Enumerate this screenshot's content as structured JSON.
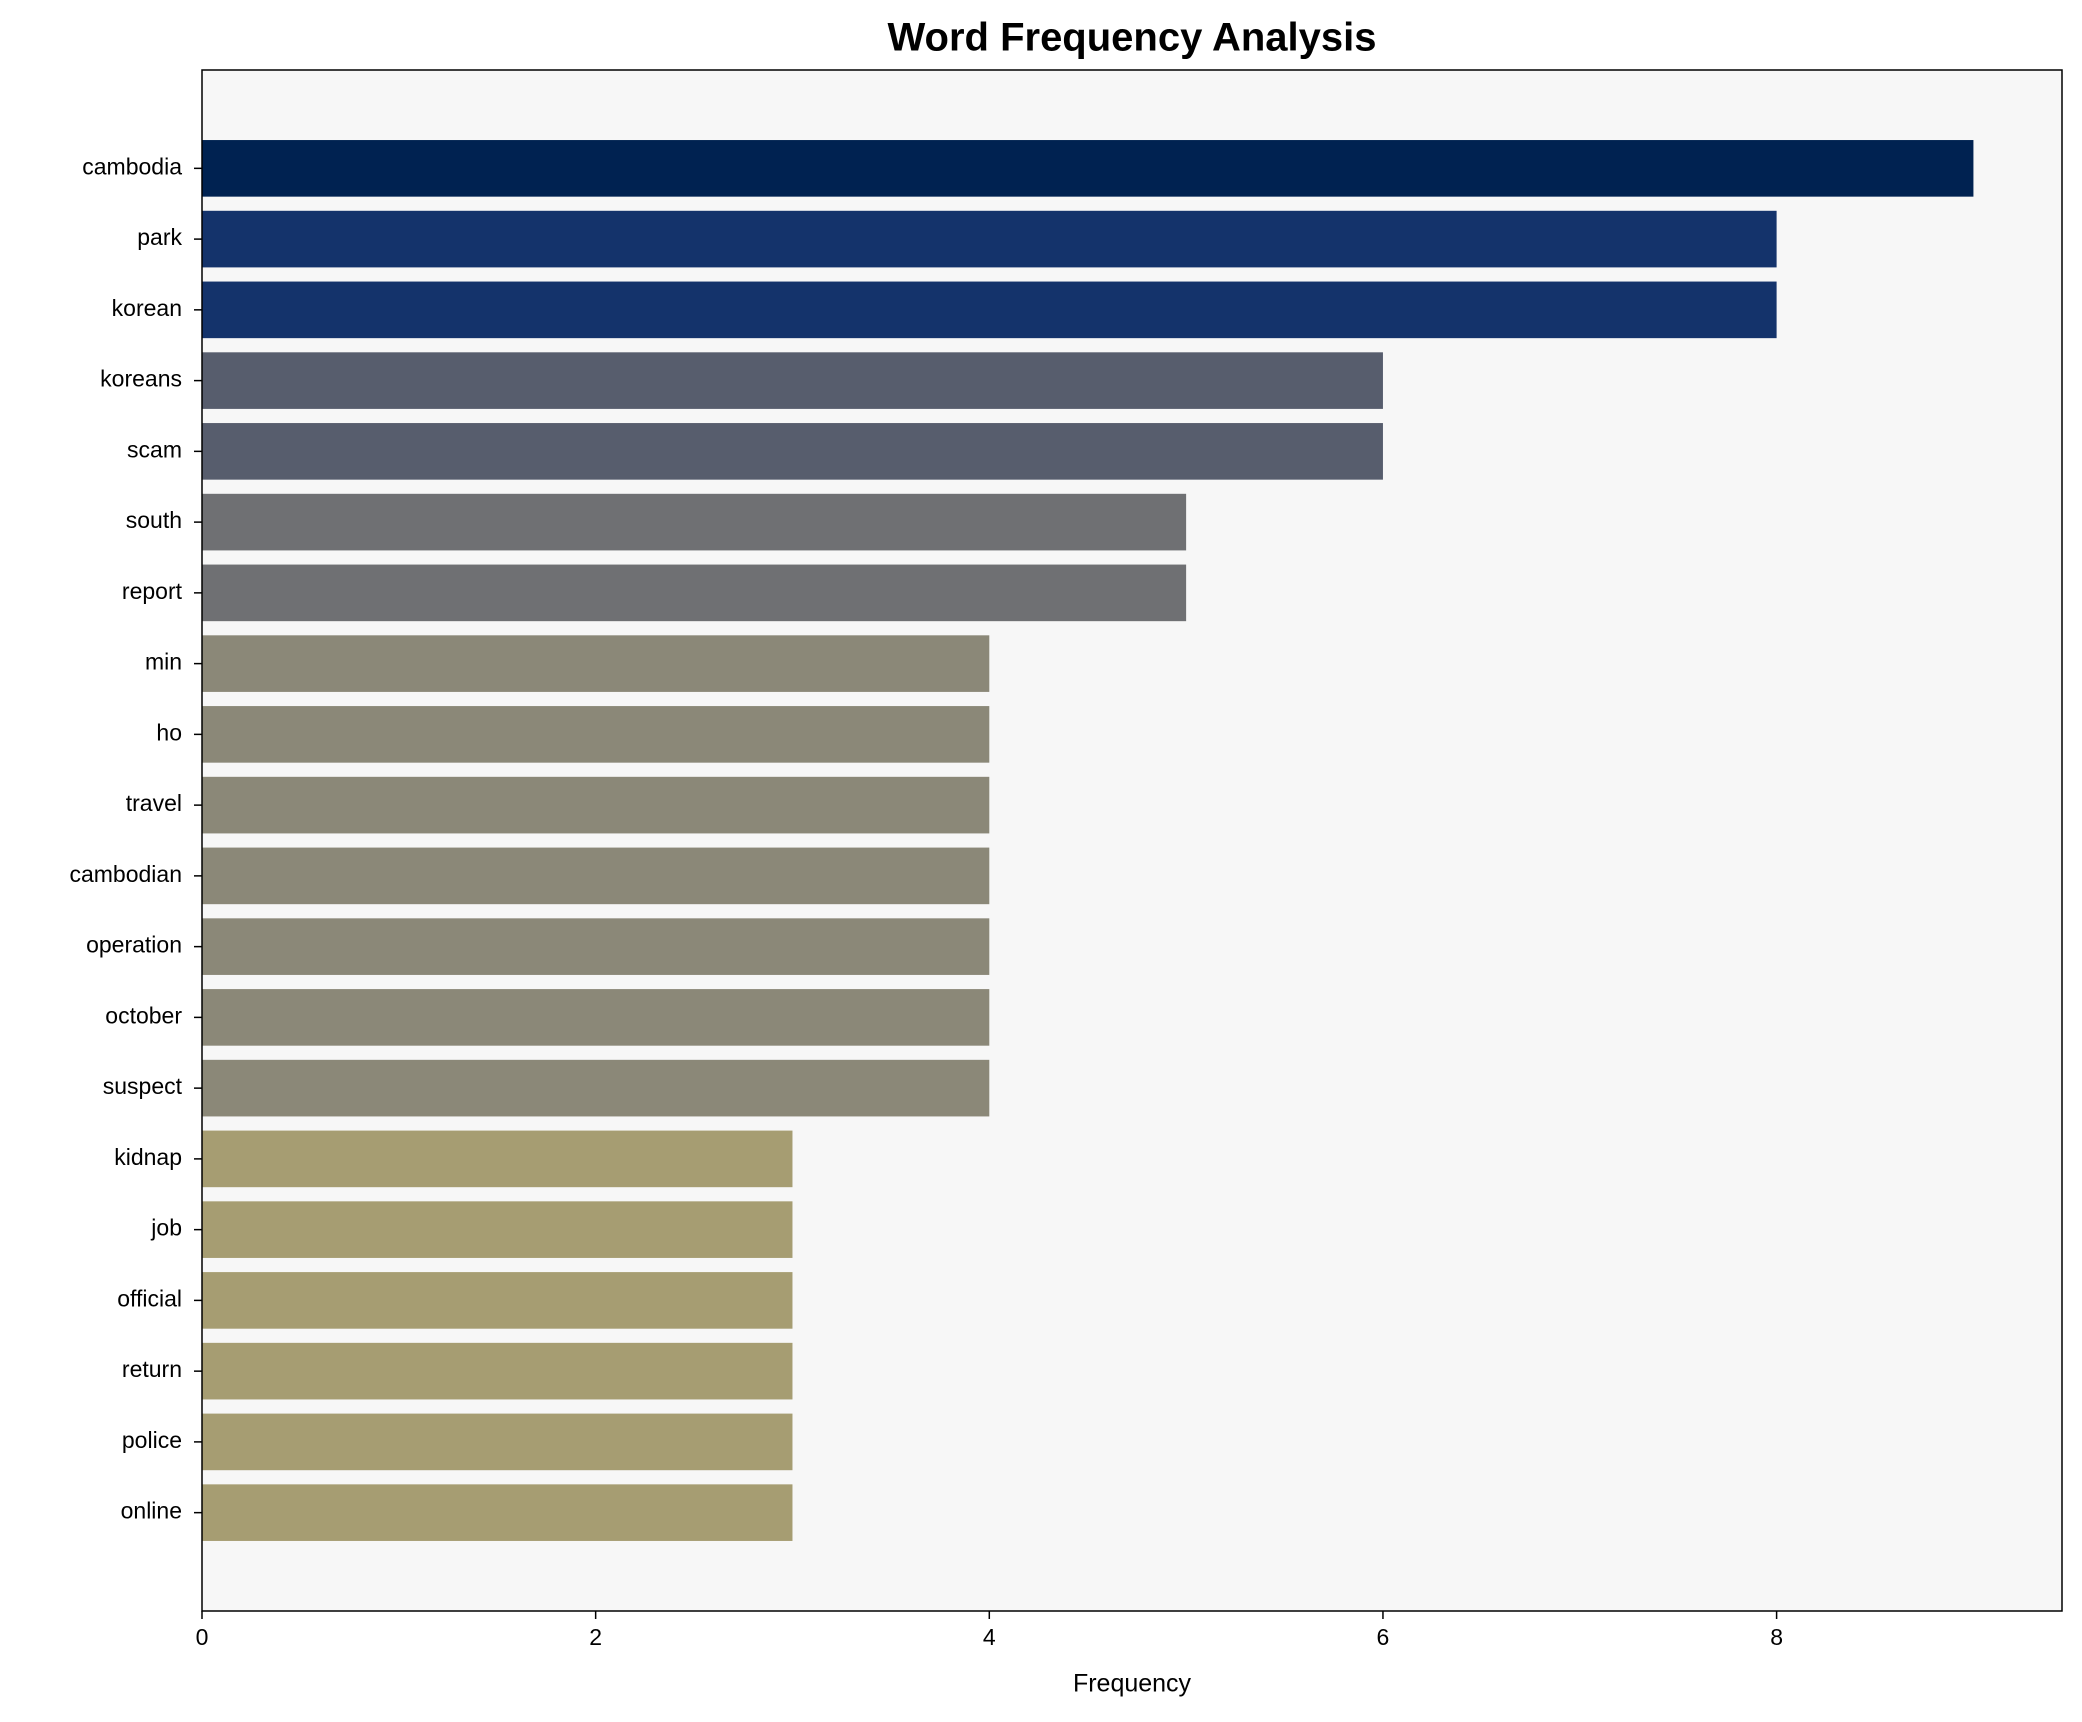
{
  "chart_data": {
    "type": "barh",
    "title": "Word Frequency Analysis",
    "xlabel": "Frequency",
    "categories": [
      "cambodia",
      "park",
      "korean",
      "koreans",
      "scam",
      "south",
      "report",
      "min",
      "ho",
      "travel",
      "cambodian",
      "operation",
      "october",
      "suspect",
      "kidnap",
      "job",
      "official",
      "return",
      "police",
      "online"
    ],
    "values": [
      9,
      8,
      8,
      6,
      6,
      5,
      5,
      4,
      4,
      4,
      4,
      4,
      4,
      4,
      3,
      3,
      3,
      3,
      3,
      3
    ],
    "colors": [
      "#002251",
      "#14336b",
      "#14336b",
      "#575d6d",
      "#575d6d",
      "#6f7073",
      "#6f7073",
      "#8b8878",
      "#8b8878",
      "#8b8878",
      "#8b8878",
      "#8b8878",
      "#8b8878",
      "#8b8878",
      "#a69d72",
      "#a69d72",
      "#a69d72",
      "#a69d72",
      "#a69d72",
      "#a69d72"
    ],
    "xlim": [
      0,
      9.45
    ],
    "xticks": [
      0,
      2,
      4,
      6,
      8
    ],
    "grid": false,
    "background": "#f7f7f7"
  }
}
